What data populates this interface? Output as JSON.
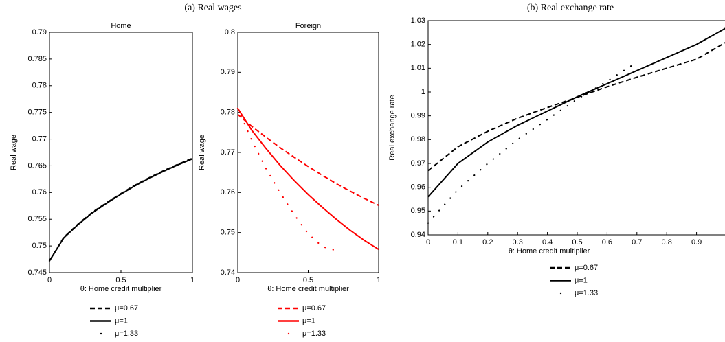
{
  "captions": [
    "(a) Real wages",
    "(b) Real exchange rate"
  ],
  "chart_data": [
    {
      "type": "line",
      "title": "Home",
      "ylabel": "Real wage",
      "xlabel": "θ: Home credit multiplier",
      "x": [
        0,
        0.1,
        0.2,
        0.3,
        0.4,
        0.5,
        0.6,
        0.7,
        0.8,
        0.9,
        1
      ],
      "xlim": [
        0,
        1
      ],
      "xticks": [
        0,
        0.5,
        1
      ],
      "ylim": [
        0.745,
        0.79
      ],
      "yticks": [
        0.745,
        0.75,
        0.755,
        0.76,
        0.765,
        0.77,
        0.775,
        0.78,
        0.785,
        0.79
      ],
      "series": [
        {
          "name": "μ=0.67",
          "color": "#000000",
          "style": "dashed",
          "values": [
            0.7472,
            0.7516,
            0.7541,
            0.7563,
            0.7581,
            0.7598,
            0.7614,
            0.7628,
            0.7641,
            0.7653,
            0.7664
          ]
        },
        {
          "name": "μ=1",
          "color": "#000000",
          "style": "solid",
          "values": [
            0.7472,
            0.7515,
            0.754,
            0.7562,
            0.758,
            0.7597,
            0.7613,
            0.7627,
            0.764,
            0.7652,
            0.7663
          ]
        },
        {
          "name": "μ=1.33",
          "color": "#000000",
          "style": "dotted",
          "values": [
            0.7472,
            0.7515,
            0.754,
            0.7562,
            0.758,
            0.7597,
            0.7613,
            0.7627,
            0.764,
            0.7652,
            0.7663
          ]
        }
      ]
    },
    {
      "type": "line",
      "title": "Foreign",
      "ylabel": "Real wage",
      "xlabel": "θ: Home credit multiplier",
      "x": [
        0,
        0.1,
        0.2,
        0.3,
        0.4,
        0.5,
        0.6,
        0.7,
        0.8,
        0.9,
        1
      ],
      "xlim": [
        0,
        1
      ],
      "xticks": [
        0,
        0.5,
        1
      ],
      "ylim": [
        0.74,
        0.8
      ],
      "yticks": [
        0.74,
        0.75,
        0.76,
        0.77,
        0.78,
        0.79,
        0.8
      ],
      "series": [
        {
          "name": "μ=0.67",
          "color": "#ff0000",
          "style": "dashed",
          "values": [
            0.7795,
            0.7765,
            0.7738,
            0.7712,
            0.7688,
            0.7665,
            0.7643,
            0.7622,
            0.7603,
            0.7585,
            0.7568
          ]
        },
        {
          "name": "μ=1",
          "color": "#ff0000",
          "style": "solid",
          "values": [
            0.781,
            0.7755,
            0.771,
            0.7668,
            0.763,
            0.7595,
            0.7563,
            0.7533,
            0.7505,
            0.748,
            0.7458
          ]
        },
        {
          "name": "μ=1.33",
          "color": "#ff0000",
          "style": "dotted",
          "values": [
            0.781,
            0.773,
            0.766,
            0.76,
            0.7545,
            0.7497,
            0.7465,
            0.7455,
            null,
            null,
            null
          ]
        }
      ]
    },
    {
      "type": "line",
      "ylabel": "Real exchange rate",
      "xlabel": "θ: Home credit multiplier",
      "x": [
        0,
        0.1,
        0.2,
        0.3,
        0.4,
        0.5,
        0.6,
        0.7,
        0.8,
        0.9,
        1
      ],
      "xlim": [
        0,
        1
      ],
      "xticks": [
        0,
        0.1,
        0.2,
        0.3,
        0.4,
        0.5,
        0.6,
        0.7,
        0.8,
        0.9
      ],
      "ylim": [
        0.94,
        1.03
      ],
      "yticks": [
        0.94,
        0.95,
        0.96,
        0.97,
        0.98,
        0.99,
        1,
        1.01,
        1.02,
        1.03
      ],
      "series": [
        {
          "name": "μ=0.67",
          "color": "#000000",
          "style": "dashed",
          "values": [
            0.967,
            0.977,
            0.9835,
            0.989,
            0.9935,
            0.9978,
            1.0022,
            1.0062,
            1.01,
            1.0138,
            1.021
          ]
        },
        {
          "name": "μ=1",
          "color": "#000000",
          "style": "solid",
          "values": [
            0.956,
            0.97,
            0.979,
            0.986,
            0.992,
            0.998,
            1.0035,
            1.009,
            1.0145,
            1.02,
            1.027
          ]
        },
        {
          "name": "μ=1.33",
          "color": "#000000",
          "style": "dotted",
          "values": [
            0.945,
            0.959,
            0.97,
            0.98,
            0.9885,
            0.997,
            1.0045,
            1.0125,
            null,
            null,
            null
          ]
        }
      ]
    }
  ]
}
